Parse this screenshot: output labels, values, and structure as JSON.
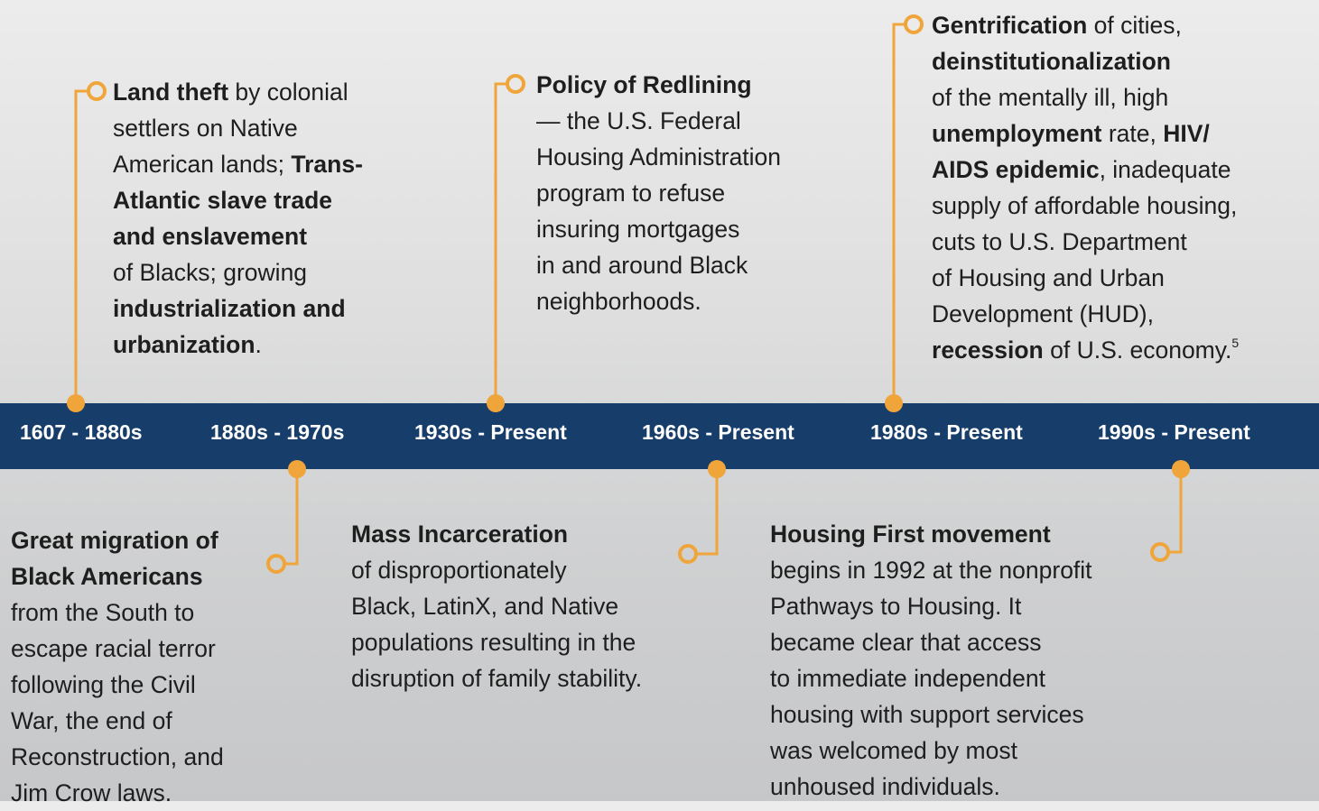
{
  "periods": [
    "1607 - 1880s",
    "1880s - 1970s",
    "1930s - Present",
    "1960s - Present",
    "1980s - Present",
    "1990s - Present"
  ],
  "events": [
    {
      "lines": [
        [
          {
            "text": "Land theft",
            "bold": true
          },
          {
            "text": " by colonial"
          }
        ],
        [
          {
            "text": "settlers on Native"
          }
        ],
        [
          {
            "text": "American lands; "
          },
          {
            "text": "Trans-",
            "bold": true
          }
        ],
        [
          {
            "text": "Atlantic slave trade",
            "bold": true
          }
        ],
        [
          {
            "text": "and enslavement",
            "bold": true
          }
        ],
        [
          {
            "text": "of Blacks; growing"
          }
        ],
        [
          {
            "text": "industrialization and",
            "bold": true
          }
        ],
        [
          {
            "text": "urbanization",
            "bold": true
          },
          {
            "text": "."
          }
        ]
      ]
    },
    {
      "lines": [
        [
          {
            "text": "Great migration of",
            "bold": true
          }
        ],
        [
          {
            "text": "Black Americans",
            "bold": true
          }
        ],
        [
          {
            "text": "from the South to"
          }
        ],
        [
          {
            "text": "escape racial terror"
          }
        ],
        [
          {
            "text": "following the Civil"
          }
        ],
        [
          {
            "text": "War, the end of"
          }
        ],
        [
          {
            "text": "Reconstruction, and"
          }
        ],
        [
          {
            "text": "Jim Crow laws."
          }
        ]
      ]
    },
    {
      "lines": [
        [
          {
            "text": "Policy of Redlining",
            "bold": true
          }
        ],
        [
          {
            "text": "— the U.S. Federal"
          }
        ],
        [
          {
            "text": "Housing Administration"
          }
        ],
        [
          {
            "text": "program to refuse"
          }
        ],
        [
          {
            "text": "insuring mortgages"
          }
        ],
        [
          {
            "text": "in and around Black"
          }
        ],
        [
          {
            "text": "neighborhoods."
          }
        ]
      ]
    },
    {
      "lines": [
        [
          {
            "text": "Mass Incarceration",
            "bold": true
          }
        ],
        [
          {
            "text": "of disproportionately"
          }
        ],
        [
          {
            "text": "Black, LatinX, and Native"
          }
        ],
        [
          {
            "text": "populations resulting in the"
          }
        ],
        [
          {
            "text": "disruption of family stability."
          }
        ]
      ]
    },
    {
      "lines": [
        [
          {
            "text": "Gentrification",
            "bold": true
          },
          {
            "text": " of cities,"
          }
        ],
        [
          {
            "text": "deinstitutionalization",
            "bold": true
          }
        ],
        [
          {
            "text": "of the mentally ill, high"
          }
        ],
        [
          {
            "text": "unemployment",
            "bold": true
          },
          {
            "text": " rate, "
          },
          {
            "text": "HIV/",
            "bold": true
          }
        ],
        [
          {
            "text": "AIDS epidemic",
            "bold": true
          },
          {
            "text": ", inadequate"
          }
        ],
        [
          {
            "text": "supply of affordable housing,"
          }
        ],
        [
          {
            "text": "cuts to U.S. Department"
          }
        ],
        [
          {
            "text": "of Housing and Urban"
          }
        ],
        [
          {
            "text": "Development (HUD),"
          }
        ],
        [
          {
            "text": "recession",
            "bold": true
          },
          {
            "text": " of U.S. economy."
          },
          {
            "text": "5",
            "sup": true
          }
        ]
      ]
    },
    {
      "lines": [
        [
          {
            "text": "Housing First movement",
            "bold": true
          }
        ],
        [
          {
            "text": "begins in 1992 at the nonprofit"
          }
        ],
        [
          {
            "text": "Pathways to Housing. It"
          }
        ],
        [
          {
            "text": "became clear that access"
          }
        ],
        [
          {
            "text": "to immediate independent"
          }
        ],
        [
          {
            "text": "housing with support services"
          }
        ],
        [
          {
            "text": "was welcomed by most"
          }
        ],
        [
          {
            "text": "unhoused individuals."
          }
        ]
      ]
    }
  ]
}
